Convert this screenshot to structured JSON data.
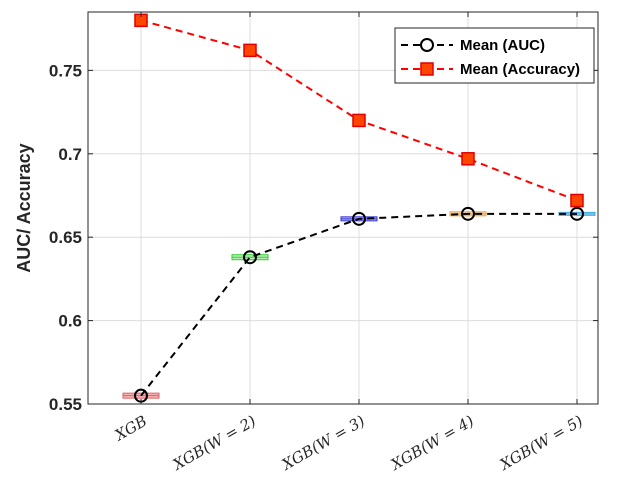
{
  "chart_data": {
    "type": "line",
    "categories": [
      "XGB",
      "XGB(W = 2)",
      "XGB(W = 3)",
      "XGB(W = 4)",
      "XGB(W = 5)"
    ],
    "ylabel": "AUC/ Accuracy",
    "xlabel": "",
    "title": "",
    "ylim": [
      0.55,
      0.785
    ],
    "yticks": [
      0.55,
      0.6,
      0.65,
      0.7,
      0.75
    ],
    "ytick_labels": [
      "0.55",
      "0.6",
      "0.65",
      "0.7",
      "0.75"
    ],
    "grid": true,
    "legend_position": "top-right",
    "series": [
      {
        "name": "Mean (AUC)",
        "values": [
          0.555,
          0.638,
          0.661,
          0.664,
          0.664
        ],
        "color": "#000000",
        "marker": "circle",
        "line_style": "dashed"
      },
      {
        "name": "Mean (Accuracy)",
        "values": [
          0.78,
          0.762,
          0.72,
          0.697,
          0.672
        ],
        "color": "#ff0000",
        "marker_fill": "#ff4500",
        "marker": "square",
        "line_style": "dashed"
      }
    ],
    "boxes": [
      {
        "category": "XGB",
        "center": 0.555,
        "half_range": 0.0015,
        "color": "#e06060",
        "fill": "#f4b4b4"
      },
      {
        "category": "XGB(W = 2)",
        "center": 0.638,
        "half_range": 0.0015,
        "color": "#33cc33",
        "fill": "#b8f0b8"
      },
      {
        "category": "XGB(W = 3)",
        "center": 0.661,
        "half_range": 0.0012,
        "color": "#3333cc",
        "fill": "#b8b8f4"
      },
      {
        "category": "XGB(W = 4)",
        "center": 0.664,
        "half_range": 0.0012,
        "color": "#e8a040",
        "fill": "#f8dcb0"
      },
      {
        "category": "XGB(W = 5)",
        "center": 0.664,
        "half_range": 0.0008,
        "color": "#3aa8e0",
        "fill": "#b8e0f8"
      }
    ]
  }
}
